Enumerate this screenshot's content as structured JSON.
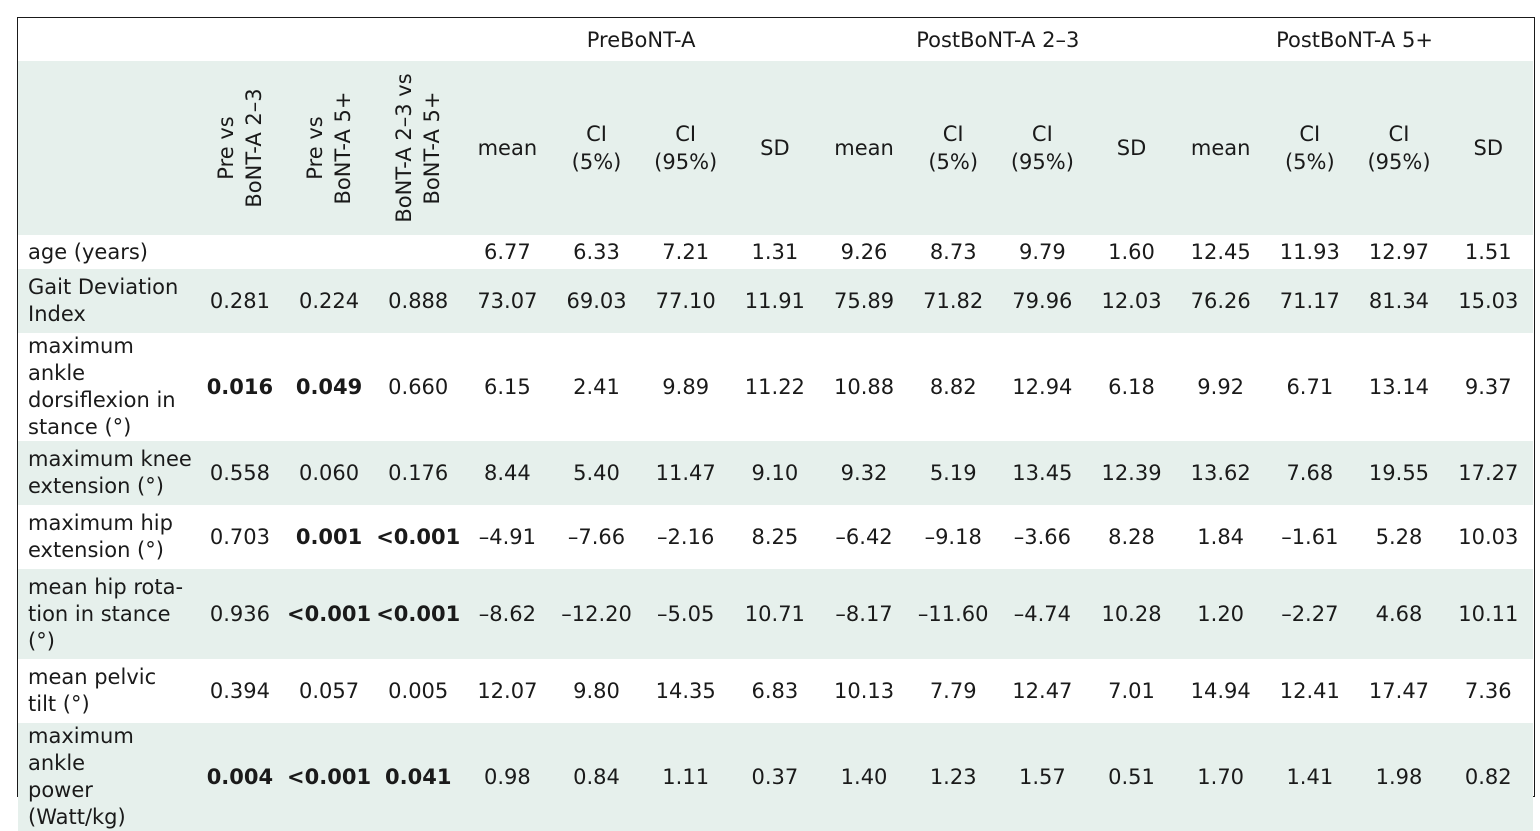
{
  "group_headers": [
    "PreBoNT-A",
    "PostBoNT-A 2–3",
    "PostBoNT-A 5+"
  ],
  "pvalue_headers": [
    [
      "Pre vs",
      "BoNT-A 2–3"
    ],
    [
      "Pre vs",
      "BoNT-A 5+"
    ],
    [
      "BoNT-A 2–3 vs",
      "BoNT-A 5+"
    ]
  ],
  "stat_headers": [
    [
      "mean"
    ],
    [
      "CI",
      "(5%)"
    ],
    [
      "CI",
      "(95%)"
    ],
    [
      "SD"
    ],
    [
      "mean"
    ],
    [
      "CI",
      "(5%)"
    ],
    [
      "CI",
      "(95%)"
    ],
    [
      "SD"
    ],
    [
      "mean"
    ],
    [
      "CI",
      "(5%)"
    ],
    [
      "CI",
      "(95%)"
    ],
    [
      "SD"
    ]
  ],
  "rows": [
    {
      "label": [
        "age (years)"
      ],
      "height": "r-age",
      "shaded": false,
      "pvalues": [
        {
          "v": ""
        },
        {
          "v": ""
        },
        {
          "v": ""
        }
      ],
      "values": [
        "6.77",
        "6.33",
        "7.21",
        "1.31",
        "9.26",
        "8.73",
        "9.79",
        "1.60",
        "12.45",
        "11.93",
        "12.97",
        "1.51"
      ]
    },
    {
      "label": [
        "Gait Deviation",
        "Index"
      ],
      "height": "r2",
      "shaded": true,
      "pvalues": [
        {
          "v": "0.281"
        },
        {
          "v": "0.224"
        },
        {
          "v": "0.888"
        }
      ],
      "values": [
        "73.07",
        "69.03",
        "77.10",
        "11.91",
        "75.89",
        "71.82",
        "79.96",
        "12.03",
        "76.26",
        "71.17",
        "81.34",
        "15.03"
      ]
    },
    {
      "label": [
        "maximum ankle",
        "dorsiflexion in",
        "stance (°)"
      ],
      "height": "r3",
      "shaded": false,
      "pvalues": [
        {
          "v": "0.016",
          "bold": true
        },
        {
          "v": "0.049",
          "bold": true
        },
        {
          "v": "0.660"
        }
      ],
      "values": [
        "6.15",
        "2.41",
        "9.89",
        "11.22",
        "10.88",
        "8.82",
        "12.94",
        "6.18",
        "9.92",
        "6.71",
        "13.14",
        "9.37"
      ]
    },
    {
      "label": [
        "maximum knee",
        "extension (°)"
      ],
      "height": "r2",
      "shaded": true,
      "pvalues": [
        {
          "v": "0.558"
        },
        {
          "v": "0.060"
        },
        {
          "v": "0.176"
        }
      ],
      "values": [
        "8.44",
        "5.40",
        "11.47",
        "9.10",
        "9.32",
        "5.19",
        "13.45",
        "12.39",
        "13.62",
        "7.68",
        "19.55",
        "17.27"
      ]
    },
    {
      "label": [
        "maximum hip",
        "extension (°)"
      ],
      "height": "r2",
      "shaded": false,
      "pvalues": [
        {
          "v": "0.703"
        },
        {
          "v": "0.001",
          "bold": true
        },
        {
          "v": "<0.001",
          "bold": true
        }
      ],
      "values": [
        "–4.91",
        "–7.66",
        "–2.16",
        "8.25",
        "–6.42",
        "–9.18",
        "–3.66",
        "8.28",
        "1.84",
        "–1.61",
        "5.28",
        "10.03"
      ]
    },
    {
      "label": [
        "mean hip rota-",
        "tion in stance",
        "(°)"
      ],
      "height": "r3",
      "shaded": true,
      "pvalues": [
        {
          "v": "0.936"
        },
        {
          "v": "<0.001",
          "bold": true
        },
        {
          "v": "<0.001",
          "bold": true
        }
      ],
      "values": [
        "–8.62",
        "–12.20",
        "–5.05",
        "10.71",
        "–8.17",
        "–11.60",
        "–4.74",
        "10.28",
        "1.20",
        "–2.27",
        "4.68",
        "10.11"
      ]
    },
    {
      "label": [
        "mean pelvic",
        "tilt  (°)"
      ],
      "height": "r2",
      "shaded": false,
      "pvalues": [
        {
          "v": "0.394"
        },
        {
          "v": "0.057"
        },
        {
          "v": "0.005"
        }
      ],
      "values": [
        "12.07",
        "9.80",
        "14.35",
        "6.83",
        "10.13",
        "7.79",
        "12.47",
        "7.01",
        "14.94",
        "12.41",
        "17.47",
        "7.36"
      ]
    },
    {
      "label": [
        "maximum ankle",
        "power",
        "(Watt/kg)"
      ],
      "height": "r3",
      "shaded": true,
      "pvalues": [
        {
          "v": "0.004",
          "bold": true
        },
        {
          "v": "<0.001",
          "bold": true
        },
        {
          "v": "0.041",
          "bold": true
        }
      ],
      "values": [
        "0.98",
        "0.84",
        "1.11",
        "0.37",
        "1.40",
        "1.23",
        "1.57",
        "0.51",
        "1.70",
        "1.41",
        "1.98",
        "0.82"
      ]
    }
  ]
}
